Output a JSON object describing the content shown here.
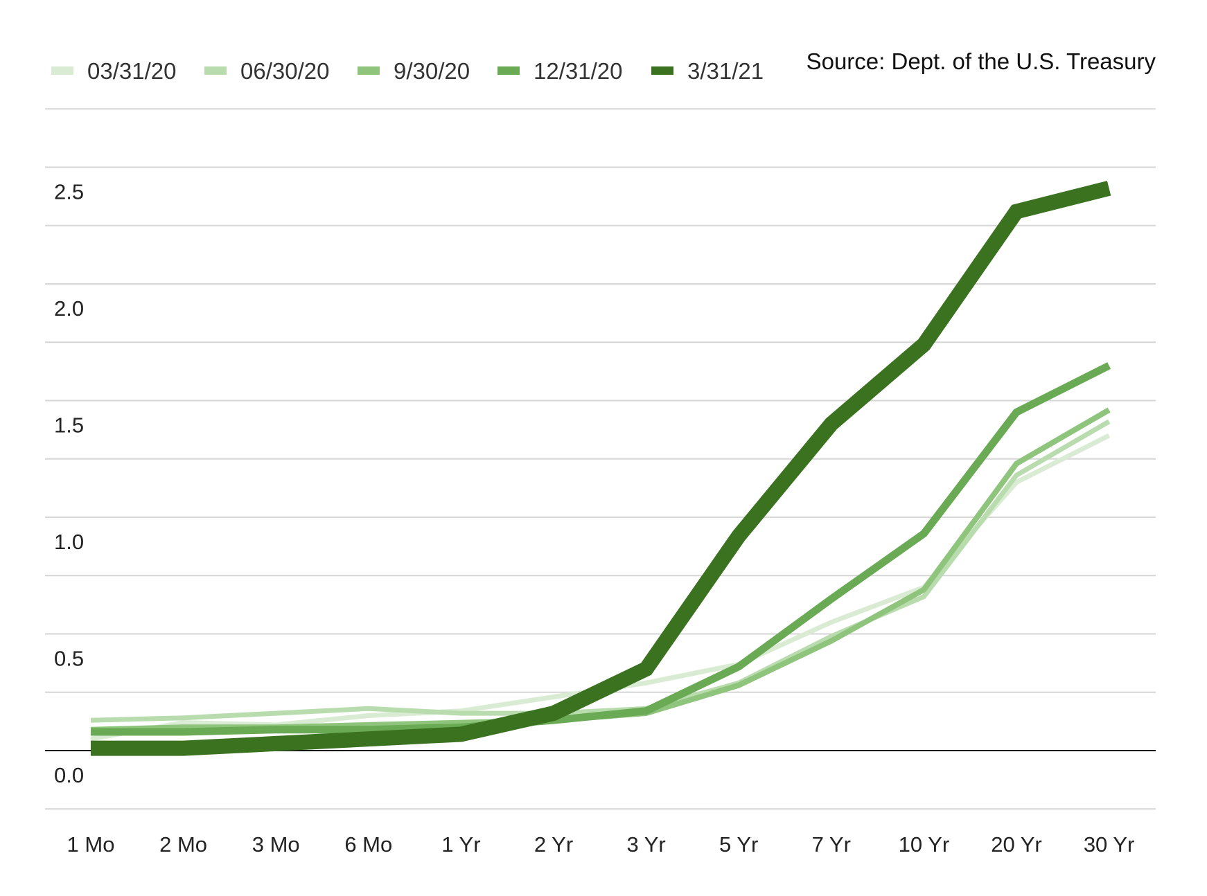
{
  "chart_data": {
    "type": "line",
    "source": "Source: Dept. of the U.S. Treasury",
    "categories": [
      "1 Mo",
      "2 Mo",
      "3 Mo",
      "6 Mo",
      "1 Yr",
      "2 Yr",
      "3 Yr",
      "5 Yr",
      "7 Yr",
      "10 Yr",
      "20 Yr",
      "30 Yr"
    ],
    "y_ticks": [
      "0.0",
      "0.5",
      "1.0",
      "1.5",
      "2.0",
      "2.5"
    ],
    "ylim": [
      -0.25,
      2.75
    ],
    "grid": true,
    "legend_position": "top-left",
    "series": [
      {
        "name": "03/31/20",
        "color": "#d9ecd3",
        "values": [
          0.05,
          0.12,
          0.11,
          0.15,
          0.17,
          0.23,
          0.29,
          0.37,
          0.55,
          0.7,
          1.15,
          1.35
        ]
      },
      {
        "name": "06/30/20",
        "color": "#b9dcae",
        "values": [
          0.13,
          0.14,
          0.16,
          0.18,
          0.16,
          0.16,
          0.18,
          0.29,
          0.49,
          0.66,
          1.18,
          1.41
        ]
      },
      {
        "name": "9/30/20",
        "color": "#8fc47c",
        "values": [
          0.09,
          0.1,
          0.1,
          0.11,
          0.12,
          0.13,
          0.16,
          0.28,
          0.47,
          0.69,
          1.23,
          1.46
        ]
      },
      {
        "name": "12/31/20",
        "color": "#6aaa55",
        "values": [
          0.08,
          0.08,
          0.09,
          0.09,
          0.1,
          0.13,
          0.17,
          0.36,
          0.65,
          0.93,
          1.45,
          1.65
        ]
      },
      {
        "name": "3/31/21",
        "color": "#3a7220",
        "values": [
          0.01,
          0.01,
          0.03,
          0.05,
          0.07,
          0.16,
          0.35,
          0.92,
          1.4,
          1.74,
          2.31,
          2.41
        ]
      }
    ]
  }
}
